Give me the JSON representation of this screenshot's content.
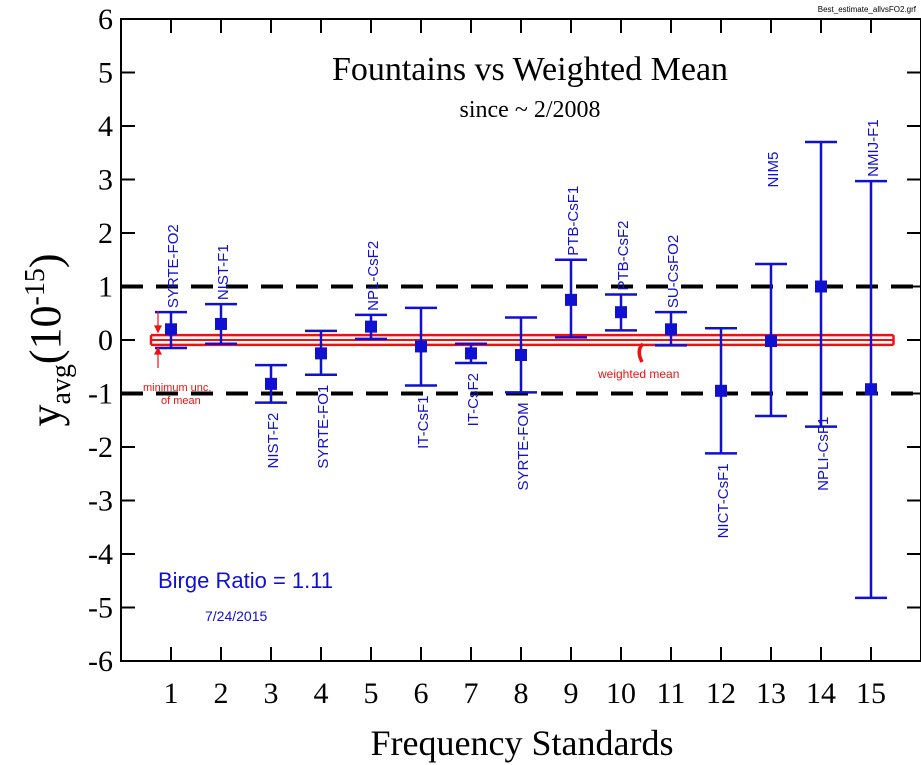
{
  "file_label": "Best_estimate_allvsFO2.grf",
  "chart_data": {
    "type": "scatter",
    "title": "Fountains vs Weighted Mean",
    "subtitle": "since  ~ 2/2008",
    "xlabel": "Frequency Standards",
    "ylabel_main": "y",
    "ylabel_sub": "avg",
    "ylabel_unit_open": "(10",
    "ylabel_unit_exp": "-15",
    "ylabel_unit_close": ")",
    "xlim": [
      0,
      16
    ],
    "ylim": [
      -6,
      6
    ],
    "x_ticks": [
      1,
      2,
      3,
      4,
      5,
      6,
      7,
      8,
      9,
      10,
      11,
      12,
      13,
      14,
      15
    ],
    "y_ticks": [
      -6,
      -5,
      -4,
      -3,
      -2,
      -1,
      0,
      1,
      2,
      3,
      4,
      5,
      6
    ],
    "reference_lines": [
      1,
      -1
    ],
    "weighted_mean": 0,
    "weighted_mean_band": [
      -0.09,
      0.09
    ],
    "series": [
      {
        "points": [
          {
            "x": 1,
            "y": 0.2,
            "lo": -0.15,
            "hi": 0.52,
            "label": "SYRTE-FO2",
            "label_side": "above"
          },
          {
            "x": 2,
            "y": 0.3,
            "lo": -0.07,
            "hi": 0.67,
            "label": "NIST-F1",
            "label_side": "above"
          },
          {
            "x": 3,
            "y": -0.82,
            "lo": -1.17,
            "hi": -0.47,
            "label": "NIST-F2",
            "label_side": "below"
          },
          {
            "x": 4,
            "y": -0.25,
            "lo": -0.65,
            "hi": 0.17,
            "label": "SYRTE-FO1",
            "label_side": "below"
          },
          {
            "x": 5,
            "y": 0.25,
            "lo": 0.02,
            "hi": 0.47,
            "label": "NPL-CsF2",
            "label_side": "above"
          },
          {
            "x": 6,
            "y": -0.12,
            "lo": -0.85,
            "hi": 0.6,
            "label": "IT-CsF1",
            "label_side": "below"
          },
          {
            "x": 7,
            "y": -0.25,
            "lo": -0.43,
            "hi": -0.07,
            "label": "IT-CsF2",
            "label_side": "below"
          },
          {
            "x": 8,
            "y": -0.28,
            "lo": -0.98,
            "hi": 0.42,
            "label": "SYRTE-FOM",
            "label_side": "below"
          },
          {
            "x": 9,
            "y": 0.75,
            "lo": 0.05,
            "hi": 1.5,
            "label": "PTB-CsF1",
            "label_side": "above"
          },
          {
            "x": 10,
            "y": 0.52,
            "lo": 0.18,
            "hi": 0.85,
            "label": "PTB-CsF2",
            "label_side": "above"
          },
          {
            "x": 11,
            "y": 0.2,
            "lo": -0.1,
            "hi": 0.52,
            "label": "SU-CsFO2",
            "label_side": "above"
          },
          {
            "x": 12,
            "y": -0.95,
            "lo": -2.12,
            "hi": 0.22,
            "label": "NICT-CsF1",
            "label_side": "below"
          },
          {
            "x": 13,
            "y": -0.02,
            "lo": -1.42,
            "hi": 1.42,
            "label": "NIM5",
            "label_side": "above"
          },
          {
            "x": 14,
            "y": 1.0,
            "lo": -1.62,
            "hi": 3.7,
            "label": "NPLI-CsF1",
            "label_side": "below"
          },
          {
            "x": 15,
            "y": -0.92,
            "lo": -4.82,
            "hi": 2.97,
            "label": "NMIJ-F1",
            "label_side": "above"
          }
        ]
      }
    ],
    "annotations": {
      "birge_ratio": "Birge Ratio = 1.11",
      "date": "7/24/2015",
      "weighted_mean_label": "weighted mean",
      "min_unc_line1": "minimum unc.",
      "min_unc_line2": "of mean"
    },
    "colors": {
      "points": "#1010d0",
      "mean": "#ee1111",
      "axes": "#000000",
      "dashed": "#000000"
    }
  }
}
